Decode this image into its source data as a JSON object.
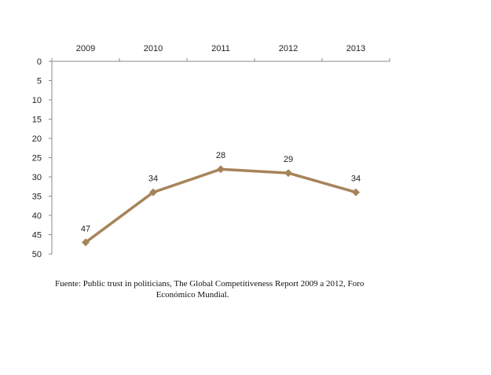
{
  "chart_data": {
    "type": "line",
    "x": [
      "2009",
      "2010",
      "2011",
      "2012",
      "2013"
    ],
    "series": [
      {
        "values": [
          47,
          34,
          28,
          29,
          34
        ],
        "color": "#a6845a",
        "marker": "diamond"
      }
    ],
    "data_labels": [
      "47",
      "34",
      "28",
      "29",
      "34"
    ],
    "y_ticks": [
      "0",
      "5",
      "10",
      "15",
      "20",
      "25",
      "30",
      "35",
      "40",
      "45",
      "50"
    ],
    "ylim": [
      0,
      50
    ],
    "y_reversed": true,
    "x_axis_position": "top",
    "grid": false,
    "title": "",
    "xlabel": "",
    "ylabel": ""
  },
  "source": {
    "line1": "Fuente: Public trust in politicians, The Global Competitiveness Report 2009 a 2012, Foro",
    "line2": "Económico Mundial."
  }
}
